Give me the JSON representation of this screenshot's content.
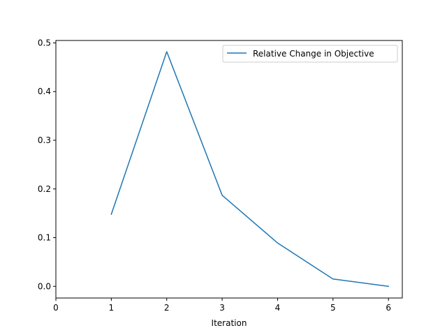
{
  "chart_data": {
    "type": "line",
    "title": "",
    "xlabel": "Iteration",
    "ylabel": "",
    "xlim": [
      0,
      6.25
    ],
    "ylim": [
      -0.024,
      0.505
    ],
    "xticks": [
      0,
      1,
      2,
      3,
      4,
      5,
      6
    ],
    "yticks": [
      0.0,
      0.1,
      0.2,
      0.3,
      0.4,
      0.5
    ],
    "xtick_labels": [
      "0",
      "1",
      "2",
      "3",
      "4",
      "5",
      "6"
    ],
    "ytick_labels": [
      "0.0",
      "0.1",
      "0.2",
      "0.3",
      "0.4",
      "0.5"
    ],
    "grid": false,
    "legend_position": "top-right",
    "series": [
      {
        "name": "Relative Change in Objective",
        "color": "#1f77b4",
        "x": [
          1,
          2,
          3,
          4,
          5,
          6
        ],
        "y": [
          0.148,
          0.482,
          0.187,
          0.089,
          0.015,
          0.0
        ]
      }
    ]
  }
}
